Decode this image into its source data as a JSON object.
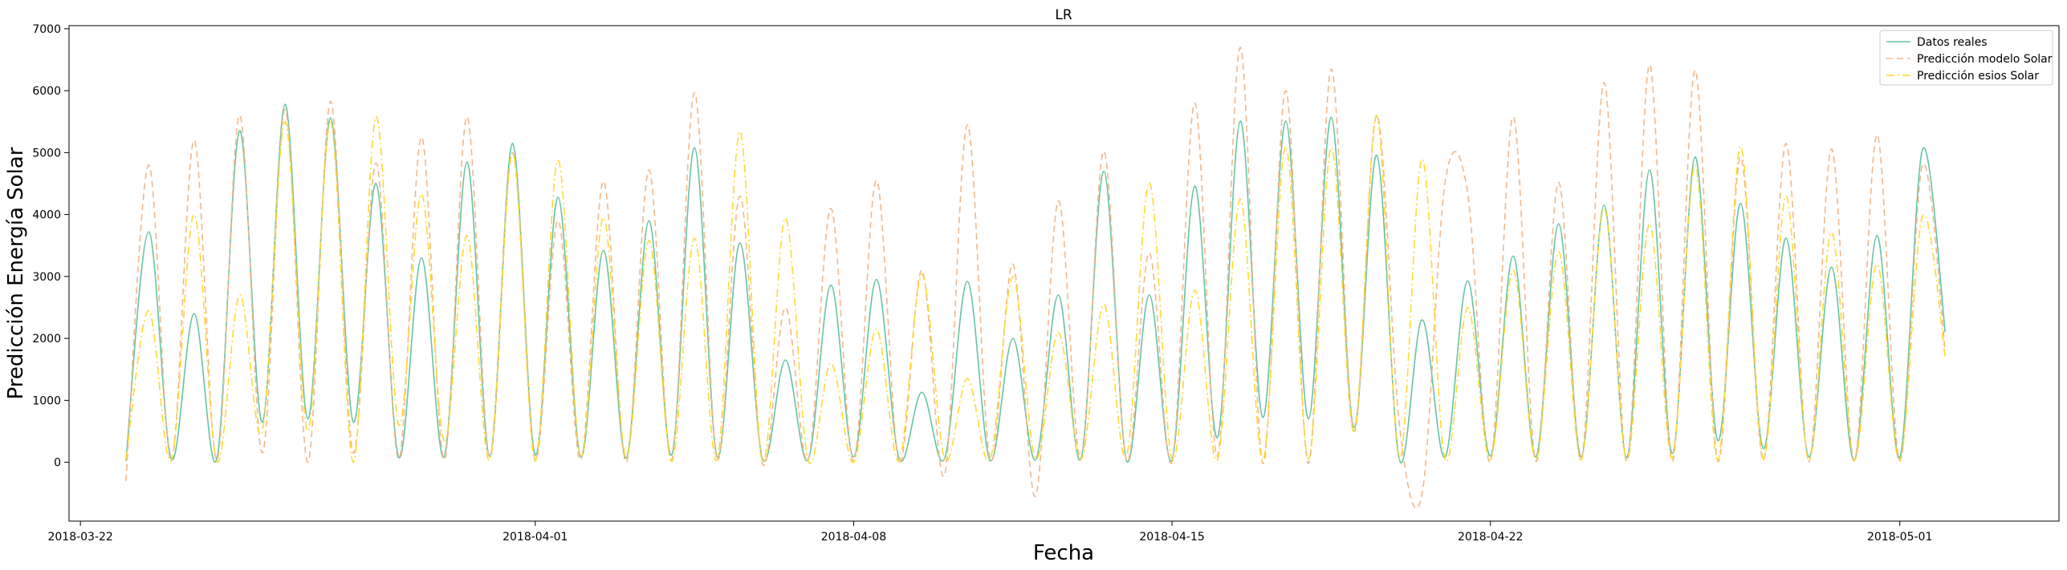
{
  "chart_data": {
    "type": "line",
    "title": "LR",
    "xlabel": "Fecha",
    "ylabel": "Predicción Energía Solar",
    "x_start": "2018-03-23T00:00",
    "x_step_hours": 12,
    "xlim": [
      "2018-03-21T18:00",
      "2018-05-04T12:00"
    ],
    "ylim": [
      -950,
      7050
    ],
    "x_ticks": [
      "2018-03-22",
      "2018-04-01",
      "2018-04-08",
      "2018-04-15",
      "2018-04-22",
      "2018-05-01"
    ],
    "y_ticks": [
      0,
      1000,
      2000,
      3000,
      4000,
      5000,
      6000,
      7000
    ],
    "grid": false,
    "legend_position": "top-right",
    "series": [
      {
        "name": "Datos reales",
        "color": "#66c2a5",
        "style": "solid",
        "values": [
          20,
          3720,
          50,
          2400,
          60,
          5350,
          650,
          5780,
          700,
          5560,
          650,
          4500,
          80,
          3300,
          90,
          4850,
          100,
          5150,
          120,
          4280,
          90,
          3420,
          70,
          3900,
          120,
          5080,
          90,
          3540,
          50,
          1650,
          40,
          2860,
          90,
          2950,
          60,
          1130,
          60,
          2920,
          30,
          2000,
          40,
          2700,
          60,
          4700,
          30,
          2700,
          40,
          4460,
          400,
          5510,
          720,
          5510,
          700,
          5570,
          560,
          4960,
          40,
          2300,
          80,
          2930,
          100,
          3330,
          90,
          3850,
          90,
          4150,
          80,
          4720,
          140,
          4930,
          350,
          4180,
          220,
          3620,
          90,
          3150,
          30,
          3660,
          80,
          5050,
          2100
        ]
      },
      {
        "name": "Predicción modelo Solar",
        "color": "#f1b88a",
        "style": "dashed",
        "values": [
          -300,
          4800,
          20,
          5200,
          40,
          5600,
          150,
          5700,
          0,
          5830,
          150,
          4830,
          50,
          5250,
          50,
          5580,
          80,
          5000,
          50,
          3900,
          40,
          4540,
          0,
          4720,
          40,
          5970,
          50,
          4300,
          -30,
          2500,
          50,
          4100,
          20,
          4550,
          0,
          3100,
          -200,
          5450,
          50,
          3200,
          -550,
          4220,
          40,
          5020,
          30,
          3380,
          10,
          5800,
          100,
          6700,
          -20,
          6000,
          -20,
          6350,
          500,
          5600,
          600,
          -500,
          4500,
          4350,
          10,
          5580,
          20,
          4520,
          50,
          6130,
          10,
          6420,
          20,
          6330,
          20,
          4930,
          40,
          5150,
          10,
          5060,
          20,
          5290,
          30,
          4800,
          1800
        ]
      },
      {
        "name": "Predicción esios Solar",
        "color": "#ffd92f",
        "style": "dashdot",
        "values": [
          40,
          2450,
          30,
          4000,
          10,
          2700,
          500,
          5500,
          500,
          5500,
          0,
          5580,
          600,
          4330,
          350,
          3660,
          40,
          5000,
          20,
          4880,
          100,
          3950,
          80,
          3580,
          10,
          3620,
          40,
          5340,
          10,
          3940,
          30,
          1600,
          0,
          2150,
          20,
          3040,
          50,
          1350,
          50,
          3000,
          60,
          2100,
          50,
          2550,
          100,
          4520,
          50,
          2780,
          40,
          4250,
          30,
          5100,
          50,
          5080,
          500,
          5600,
          50,
          4900,
          50,
          2500,
          40,
          3100,
          50,
          3400,
          40,
          4100,
          40,
          3850,
          70,
          4800,
          40,
          5100,
          50,
          4300,
          30,
          3710,
          40,
          3200,
          20,
          3970,
          1700
        ]
      }
    ]
  }
}
